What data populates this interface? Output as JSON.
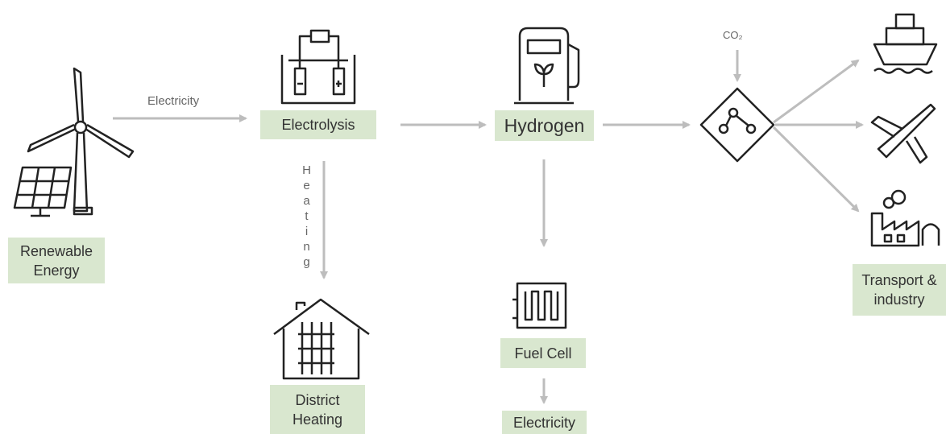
{
  "nodes": [
    {
      "label": "Renewable Energy"
    },
    {
      "label": "Electrolysis"
    },
    {
      "label": "Hydrogen"
    },
    {
      "label": "Transport & industry"
    },
    {
      "label": "District Heating"
    },
    {
      "label": "Fuel Cell"
    },
    {
      "label": "Electricity"
    }
  ],
  "edges": [
    {
      "label": "Electricity"
    },
    {
      "label": "Heating"
    }
  ],
  "inputs": [
    {
      "label": "CO₂"
    }
  ]
}
